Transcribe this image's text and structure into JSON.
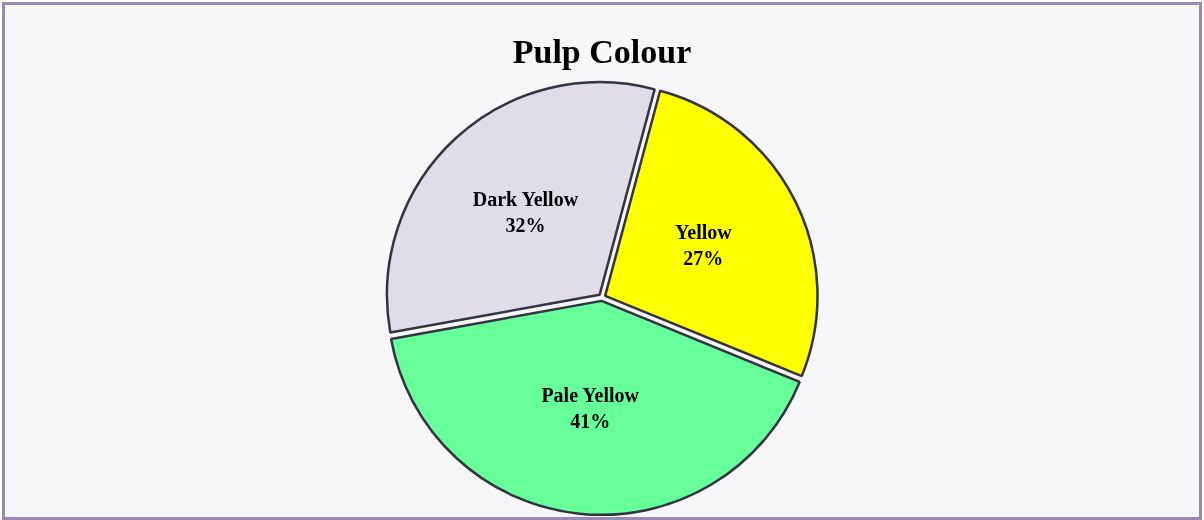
{
  "chart_data": {
    "type": "pie",
    "title": "Pulp Colour",
    "categories": [
      "Yellow",
      "Pale Yellow",
      "Dark Yellow"
    ],
    "values": [
      27,
      41,
      32
    ],
    "value_labels": [
      "27%",
      "41%",
      "32%"
    ],
    "colors": [
      "#ffff00",
      "#66ff99",
      "#e0dce8"
    ],
    "legend": false
  }
}
